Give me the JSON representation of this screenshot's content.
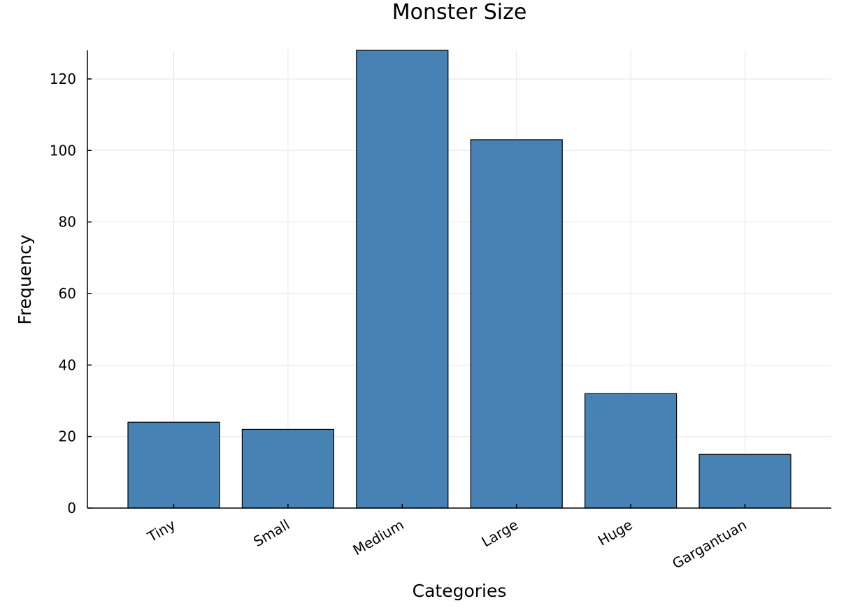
{
  "chart_data": {
    "type": "bar",
    "title": "Monster Size",
    "xlabel": "Categories",
    "ylabel": "Frequency",
    "categories": [
      "Tiny",
      "Small",
      "Medium",
      "Large",
      "Huge",
      "Gargantuan"
    ],
    "values": [
      24,
      22,
      128,
      103,
      32,
      15
    ],
    "ylim": [
      0,
      128
    ],
    "yticks": [
      0,
      20,
      40,
      60,
      80,
      100,
      120
    ],
    "bar_color": "#4682b4",
    "grid": true,
    "legend": "none"
  }
}
